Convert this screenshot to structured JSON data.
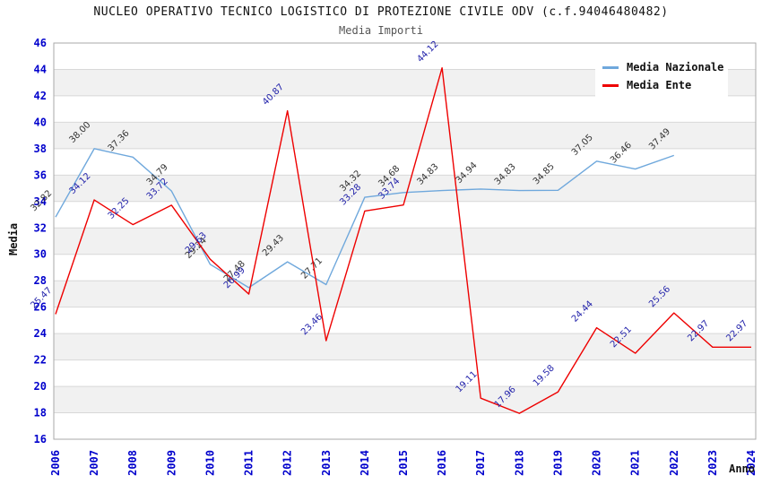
{
  "chart_data": {
    "type": "line",
    "title": "NUCLEO OPERATIVO TECNICO LOGISTICO DI PROTEZIONE CIVILE ODV (c.f.94046480482)",
    "subtitle": "Media Importi",
    "xlabel": "Anno",
    "ylabel": "Media",
    "ylim": [
      16,
      46
    ],
    "yticks": [
      16,
      18,
      20,
      22,
      24,
      26,
      28,
      30,
      32,
      34,
      36,
      38,
      40,
      42,
      44,
      46
    ],
    "categories": [
      2006,
      2007,
      2008,
      2009,
      2010,
      2011,
      2012,
      2013,
      2014,
      2015,
      2016,
      2017,
      2018,
      2019,
      2020,
      2021,
      2022,
      2023,
      2024
    ],
    "series": [
      {
        "name": "Media Nazionale",
        "color": "#6FA8DC",
        "label_color": "#333333",
        "years": [
          2006,
          2007,
          2008,
          2009,
          2010,
          2011,
          2012,
          2013,
          2014,
          2015,
          2016,
          2017,
          2018,
          2019,
          2020,
          2021,
          2022
        ],
        "values": [
          32.82,
          38.0,
          37.36,
          34.79,
          29.24,
          27.48,
          29.43,
          27.71,
          34.32,
          34.68,
          34.83,
          34.94,
          34.83,
          34.85,
          37.05,
          36.46,
          37.49
        ]
      },
      {
        "name": "Media Ente",
        "color": "#EE0000",
        "label_color": "#2222AA",
        "years": [
          2006,
          2007,
          2008,
          2009,
          2010,
          2011,
          2012,
          2013,
          2014,
          2015,
          2016,
          2017,
          2018,
          2019,
          2020,
          2021,
          2022,
          2023,
          2024
        ],
        "values": [
          25.47,
          34.12,
          32.25,
          33.72,
          29.63,
          26.99,
          40.87,
          23.46,
          33.28,
          33.74,
          44.12,
          19.11,
          17.96,
          19.58,
          24.44,
          22.51,
          25.56,
          22.97,
          22.97
        ]
      }
    ],
    "legend_position": "top-right",
    "grid": "horizontal",
    "tick_color": "#0000CC",
    "band_color": "#F1F1F1",
    "gridline_color": "#D8D8D8",
    "frame_color": "#A9A9A9",
    "background": "#FFFFFF"
  }
}
